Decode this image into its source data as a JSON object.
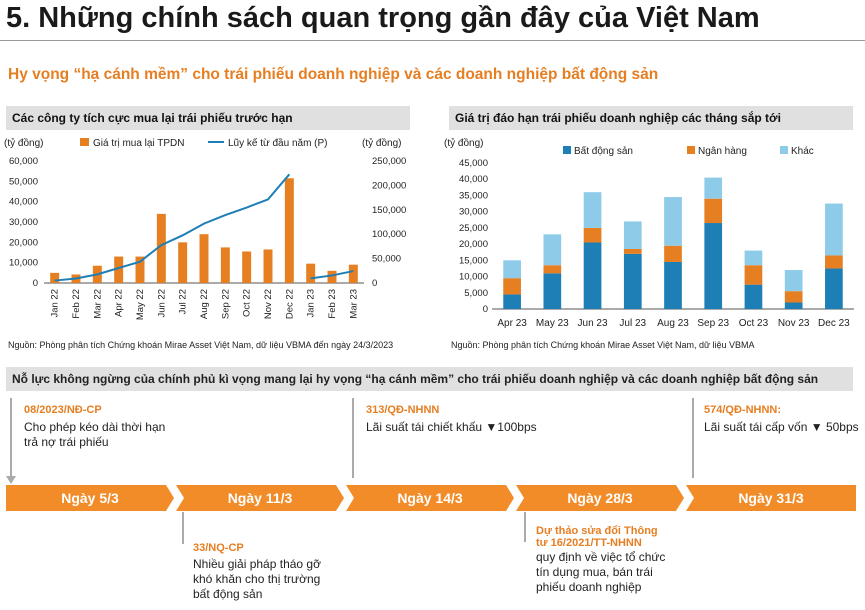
{
  "page": {
    "title": "5. Những chính sách quan trọng gần đây của Việt Nam",
    "subtitle": "Hy vọng “hạ cánh mềm” cho trái phiếu doanh nghiệp và các doanh nghiệp bất động sản"
  },
  "colors": {
    "orange": "#e67e22",
    "blue": "#1d7fb6",
    "lightblue": "#8ecbe8",
    "gray": "#e0e0e0"
  },
  "left_chart": {
    "heading": "Các công ty tích cực mua lại trái phiếu trước hạn",
    "source": "Nguồn: Phòng phân tích Chứng khoán Mirae Asset Việt Nam, dữ liệu VBMA đến ngày 24/3/2023"
  },
  "right_chart": {
    "heading": "Giá trị đáo hạn trái phiếu doanh nghiệp các tháng sắp tới",
    "source": "Nguồn: Phòng phân tích Chứng khoán Mirae Asset Việt Nam, dữ liệu VBMA"
  },
  "chart_data": [
    {
      "type": "bar",
      "title": "Các công ty tích cực mua lại trái phiếu trước hạn",
      "ylabel_left": "(tỷ đồng)",
      "ylabel_right": "(tỷ đồng)",
      "categories": [
        "Jan 22",
        "Feb 22",
        "Mar 22",
        "Apr 22",
        "May 22",
        "Jun 22",
        "Jul 22",
        "Aug 22",
        "Sep 22",
        "Oct 22",
        "Nov 22",
        "Dec 22",
        "Jan 23",
        "Feb 23",
        "Mar 23"
      ],
      "series": [
        {
          "name": "Giá trị mua lại TPDN",
          "kind": "bar",
          "axis": "left",
          "values": [
            5000,
            4200,
            8500,
            13000,
            13000,
            34000,
            20000,
            24000,
            17500,
            15500,
            16500,
            51500,
            9500,
            6000,
            9000
          ]
        },
        {
          "name": "Lũy kế từ đầu năm (P)",
          "kind": "line",
          "axis": "right",
          "values": [
            5000,
            9200,
            17700,
            30700,
            43700,
            77700,
            97700,
            121700,
            139200,
            154700,
            171200,
            222700,
            9500,
            15500,
            24500
          ],
          "breaks_after_index": 11
        }
      ],
      "ylim_left": [
        0,
        60000
      ],
      "ylim_right": [
        0,
        250000
      ],
      "yticks_left": [
        "0",
        "10,000",
        "20,000",
        "30,000",
        "40,000",
        "50,000",
        "60,000"
      ],
      "yticks_right": [
        "0",
        "50,000",
        "100,000",
        "150,000",
        "200,000",
        "250,000"
      ]
    },
    {
      "type": "bar",
      "stacked": true,
      "title": "Giá trị đáo hạn trái phiếu doanh nghiệp các tháng sắp tới",
      "ylabel": "(tỷ đồng)",
      "categories": [
        "Apr 23",
        "May 23",
        "Jun 23",
        "Jul 23",
        "Aug 23",
        "Sep 23",
        "Oct 23",
        "Nov 23",
        "Dec 23"
      ],
      "series": [
        {
          "name": "Bất động sản",
          "values": [
            4500,
            11000,
            20500,
            17000,
            14500,
            26500,
            7500,
            2000,
            12500
          ]
        },
        {
          "name": "Ngân hàng",
          "values": [
            5000,
            2500,
            4500,
            1500,
            5000,
            7500,
            6000,
            3500,
            4000
          ]
        },
        {
          "name": "Khác",
          "values": [
            5500,
            9500,
            11000,
            8500,
            15000,
            6500,
            4500,
            6500,
            16000
          ]
        }
      ],
      "ylim": [
        0,
        45000
      ],
      "yticks": [
        "0",
        "5,000",
        "10,000",
        "15,000",
        "20,000",
        "25,000",
        "30,000",
        "35,000",
        "40,000",
        "45,000"
      ]
    }
  ],
  "timeline": {
    "heading": "Nỗ lực không ngừng của chính phủ kì vọng mang lại hy vọng “hạ cánh mềm” cho trái phiếu doanh nghiệp và các doanh nghiệp bất động sản",
    "dates": [
      "Ngày 5/3",
      "Ngày 11/3",
      "Ngày 14/3",
      "Ngày 28/3",
      "Ngày 31/3"
    ],
    "events": [
      {
        "code": "08/2023/NĐ-CP",
        "lines": [
          "Cho phép kéo dài thời hạn",
          "trả nợ trái phiếu"
        ]
      },
      {
        "code": "33/NQ-CP",
        "lines": [
          "Nhiều giải pháp tháo gỡ",
          "khó khăn cho thị trường",
          "bất động sản"
        ]
      },
      {
        "code": "313/QĐ-NHNN",
        "lines": [
          "Lãi suất tái chiết khấu ▼100bps"
        ]
      },
      {
        "code_lines": [
          "Dự thảo sửa đổi Thông",
          "tư 16/2021/TT-NHNN"
        ],
        "lines": [
          "quy định về việc tổ chức",
          "tín dụng mua, bán trái",
          "phiếu doanh nghiệp"
        ]
      },
      {
        "code": "574/QĐ-NHNN:",
        "lines": [
          "Lãi suất tái cấp vốn ▼ 50bps"
        ]
      }
    ]
  }
}
